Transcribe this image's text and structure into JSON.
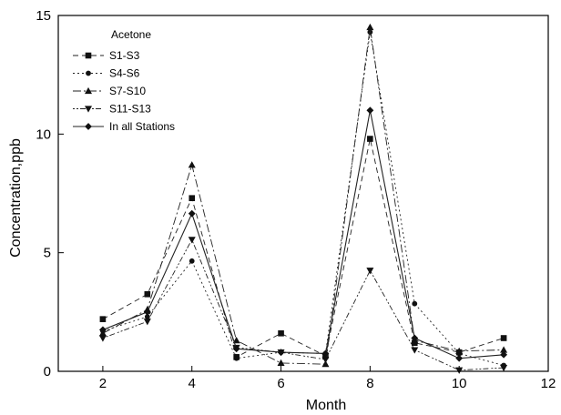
{
  "chart_data": {
    "type": "line",
    "title": "",
    "xlabel": "Month",
    "ylabel": "Concentration,ppb",
    "xlim": [
      1,
      12
    ],
    "ylim": [
      0,
      15
    ],
    "x_ticks": [
      2,
      4,
      6,
      8,
      10,
      12
    ],
    "y_ticks": [
      0,
      5,
      10,
      15
    ],
    "grid": false,
    "legend": {
      "title": "Acetone",
      "position": "top-left"
    },
    "x": [
      2,
      3,
      4,
      5,
      6,
      7,
      8,
      9,
      10,
      11
    ],
    "series": [
      {
        "name": "S1-S3",
        "marker": "square",
        "dash": "6,4",
        "values": [
          2.2,
          3.25,
          7.3,
          0.6,
          1.6,
          0.65,
          9.8,
          1.2,
          0.8,
          1.4
        ]
      },
      {
        "name": "S4-S6",
        "marker": "circle",
        "dash": "2,3",
        "values": [
          1.7,
          2.3,
          4.65,
          0.55,
          0.8,
          0.75,
          14.3,
          2.85,
          0.75,
          0.25
        ]
      },
      {
        "name": "S7-S10",
        "marker": "triangle-up",
        "dash": "9,3,2,3",
        "values": [
          1.6,
          2.6,
          8.7,
          1.3,
          0.35,
          0.3,
          14.5,
          1.3,
          0.85,
          0.9
        ]
      },
      {
        "name": "S11-S13",
        "marker": "triangle-down",
        "dash": "2,2,2,2,6,3",
        "values": [
          1.4,
          2.1,
          5.55,
          1.0,
          0.8,
          0.5,
          4.25,
          0.9,
          0.05,
          0.15
        ]
      },
      {
        "name": "In all Stations",
        "marker": "diamond",
        "dash": "",
        "values": [
          1.75,
          2.5,
          6.65,
          0.95,
          0.8,
          0.75,
          11.0,
          1.4,
          0.55,
          0.7
        ]
      }
    ]
  }
}
